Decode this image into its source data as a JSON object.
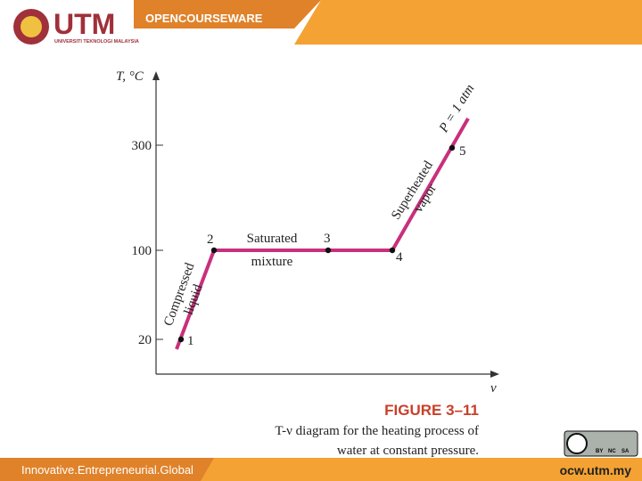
{
  "header": {
    "logo": "UTM",
    "university": "UNIVERSITI TEKNOLOGI MALAYSIA",
    "section": "OPENCOURSEWARE"
  },
  "figure": {
    "y_axis_label": "T, °C",
    "x_axis_label": "v",
    "y_ticks": [
      "300",
      "100",
      "20"
    ],
    "points": [
      "1",
      "2",
      "3",
      "4",
      "5"
    ],
    "regions": [
      {
        "lines": [
          "Compressed",
          "liquid"
        ]
      },
      {
        "lines": [
          "Saturated",
          "mixture"
        ]
      },
      {
        "lines": [
          "Superheated",
          "vapor"
        ]
      },
      {
        "lines": [
          "P = 1 atm"
        ]
      }
    ],
    "caption": {
      "number": "FIGURE 3–11",
      "lines": [
        "T-ν diagram for the heating process of",
        "water at constant pressure."
      ]
    }
  },
  "footer": {
    "tagline": "Innovative.Entrepreneurial.Global",
    "url": "ocw.utm.my",
    "license": [
      "BY",
      "NC",
      "SA"
    ]
  }
}
